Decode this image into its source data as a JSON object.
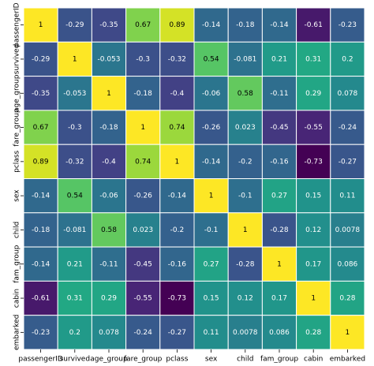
{
  "chart_data": {
    "type": "heatmap",
    "colormap": "viridis",
    "annotate": true,
    "x_categories": [
      "passengerID",
      "survived",
      "age_group",
      "fare_group",
      "pclass",
      "sex",
      "child",
      "fam_group",
      "cabin",
      "embarked"
    ],
    "y_categories": [
      "passengerID",
      "survived",
      "age_group",
      "fare_group",
      "pclass",
      "sex",
      "child",
      "fam_group",
      "cabin",
      "embarked"
    ],
    "values": [
      [
        1,
        -0.29,
        -0.35,
        0.67,
        0.89,
        -0.14,
        -0.18,
        -0.14,
        -0.61,
        -0.23
      ],
      [
        -0.29,
        1,
        -0.053,
        -0.3,
        -0.32,
        0.54,
        -0.081,
        0.21,
        0.31,
        0.2
      ],
      [
        -0.35,
        -0.053,
        1,
        -0.18,
        -0.4,
        -0.06,
        0.58,
        -0.11,
        0.29,
        0.078
      ],
      [
        0.67,
        -0.3,
        -0.18,
        1,
        0.74,
        -0.26,
        0.023,
        -0.45,
        -0.55,
        -0.24
      ],
      [
        0.89,
        -0.32,
        -0.4,
        0.74,
        1,
        -0.14,
        -0.2,
        -0.16,
        -0.73,
        -0.27
      ],
      [
        -0.14,
        0.54,
        -0.06,
        -0.26,
        -0.14,
        1,
        -0.1,
        0.27,
        0.15,
        0.11
      ],
      [
        -0.18,
        -0.081,
        0.58,
        0.023,
        -0.2,
        -0.1,
        1,
        -0.28,
        0.12,
        0.0078
      ],
      [
        -0.14,
        0.21,
        -0.11,
        -0.45,
        -0.16,
        0.27,
        -0.28,
        1,
        0.17,
        0.086
      ],
      [
        -0.61,
        0.31,
        0.29,
        -0.55,
        -0.73,
        0.15,
        0.12,
        0.17,
        1,
        0.28
      ],
      [
        -0.23,
        0.2,
        0.078,
        -0.24,
        -0.27,
        0.11,
        0.0078,
        0.086,
        0.28,
        1
      ]
    ]
  }
}
